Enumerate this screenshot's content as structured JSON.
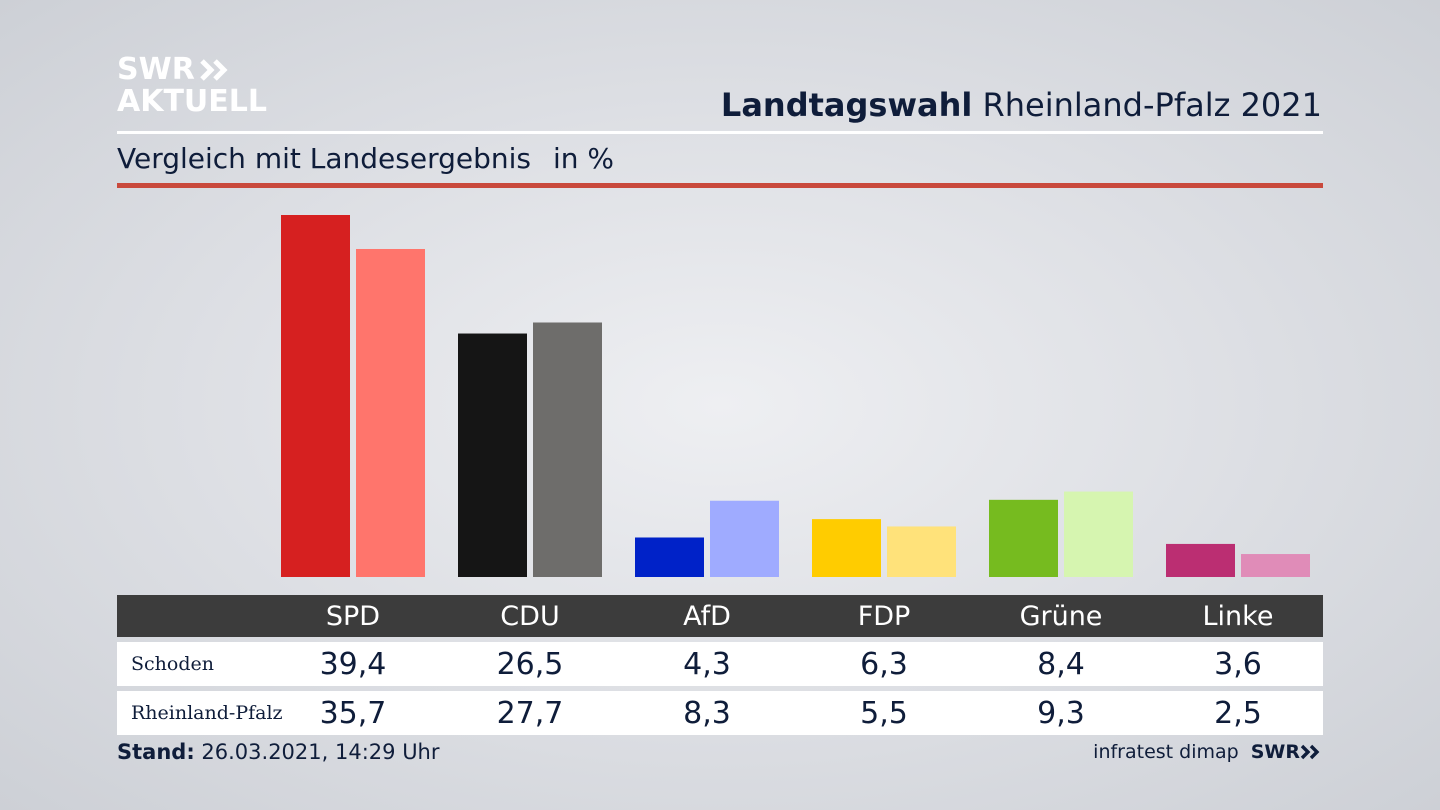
{
  "brand": {
    "line1": "SWR",
    "line2": "AKTUELL",
    "source_label": "infratest dimap",
    "source_brand": "SWR"
  },
  "header": {
    "title_bold": "Landtagswahl",
    "title_rest": "Rheinland-Pfalz 2021",
    "subtitle": "Vergleich mit Landesergebnis",
    "unit": "in %"
  },
  "footer": {
    "stand_label": "Stand:",
    "stand_value": "26.03.2021, 14:29 Uhr"
  },
  "table": {
    "headers": [
      "SPD",
      "CDU",
      "AfD",
      "FDP",
      "Grüne",
      "Linke"
    ],
    "rows": [
      {
        "label": "Schoden",
        "values": [
          "39,4",
          "26,5",
          "4,3",
          "6,3",
          "8,4",
          "3,6"
        ]
      },
      {
        "label": "Rheinland-Pfalz",
        "values": [
          "35,7",
          "27,7",
          "8,3",
          "5,5",
          "9,3",
          "2,5"
        ]
      }
    ]
  },
  "chart_data": {
    "type": "bar",
    "categories": [
      "SPD",
      "CDU",
      "AfD",
      "FDP",
      "Grüne",
      "Linke"
    ],
    "series": [
      {
        "name": "Schoden",
        "values": [
          39.4,
          26.5,
          4.3,
          6.3,
          8.4,
          3.6
        ],
        "colors": [
          "#d62020",
          "#151515",
          "#0022c8",
          "#ffcc00",
          "#76bb1f",
          "#bb2e72"
        ]
      },
      {
        "name": "Rheinland-Pfalz",
        "values": [
          35.7,
          27.7,
          8.3,
          5.5,
          9.3,
          2.5
        ],
        "colors": [
          "#ff756c",
          "#6e6d6b",
          "#9fabff",
          "#ffe27a",
          "#d6f5b0",
          "#e08cb8"
        ]
      }
    ],
    "ylim": [
      0,
      39.4
    ],
    "grid": false,
    "title": "",
    "xlabel": "",
    "ylabel": ""
  }
}
